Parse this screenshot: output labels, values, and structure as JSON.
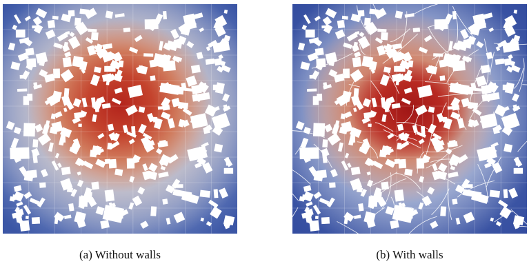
{
  "figure": {
    "panels": [
      {
        "id": "a",
        "caption": "(a) Without walls",
        "walls": false
      },
      {
        "id": "b",
        "caption": "(b) With walls",
        "walls": true
      }
    ],
    "colors": {
      "hot": "#b3241c",
      "cold": "#2f4ba0",
      "buildings": "#ffffff"
    }
  }
}
